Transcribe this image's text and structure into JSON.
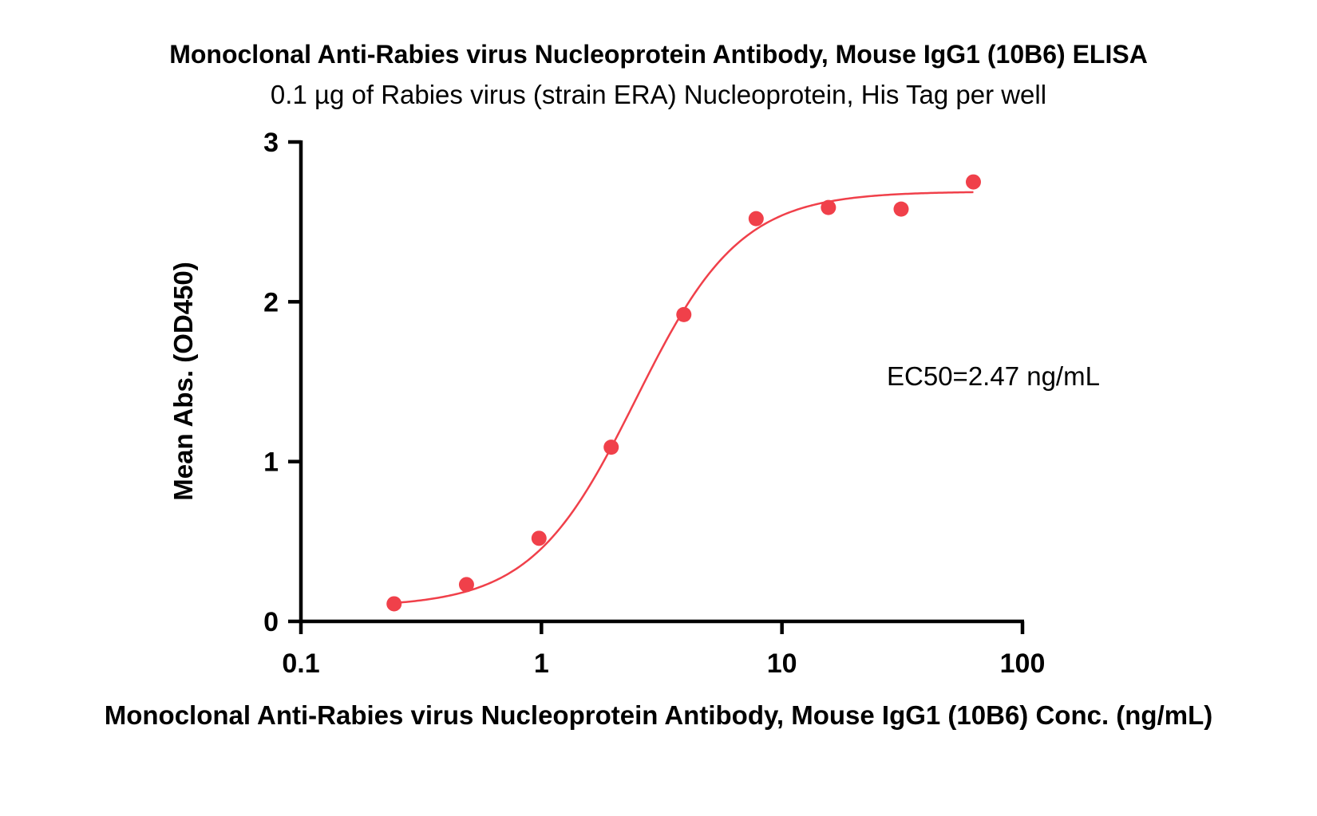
{
  "chart_data": {
    "type": "scatter",
    "title": "Monoclonal Anti-Rabies virus Nucleoprotein Antibody, Mouse IgG1 (10B6) ELISA",
    "subtitle": "0.1 µg of Rabies virus (strain ERA) Nucleoprotein, His Tag per well",
    "xlabel": "Monoclonal Anti-Rabies virus Nucleoprotein Antibody, Mouse IgG1 (10B6) Conc. (ng/mL)",
    "ylabel": "Mean Abs. (OD450)",
    "x_scale": "log",
    "xlim": [
      0.1,
      100
    ],
    "ylim": [
      0,
      3
    ],
    "x_ticks": [
      0.1,
      1,
      10,
      100
    ],
    "x_tick_labels": [
      "0.1",
      "1",
      "10",
      "100"
    ],
    "y_ticks": [
      0,
      1,
      2,
      3
    ],
    "y_tick_labels": [
      "0",
      "1",
      "2",
      "3"
    ],
    "grid": false,
    "color": "#f0404a",
    "series": [
      {
        "x": [
          0.244,
          0.488,
          0.977,
          1.95,
          3.91,
          7.81,
          15.6,
          31.3,
          62.5
        ],
        "y": [
          0.11,
          0.23,
          0.52,
          1.09,
          1.92,
          2.52,
          2.59,
          2.58,
          2.75
        ]
      }
    ],
    "fit_curve": {
      "type": "4PL",
      "bottom": 0.09,
      "top": 2.69,
      "ec50": 2.47,
      "hill": 2.0,
      "x_range": [
        0.244,
        62.5
      ]
    },
    "annotations": [
      {
        "text": "EC50=2.47 ng/mL"
      }
    ]
  }
}
